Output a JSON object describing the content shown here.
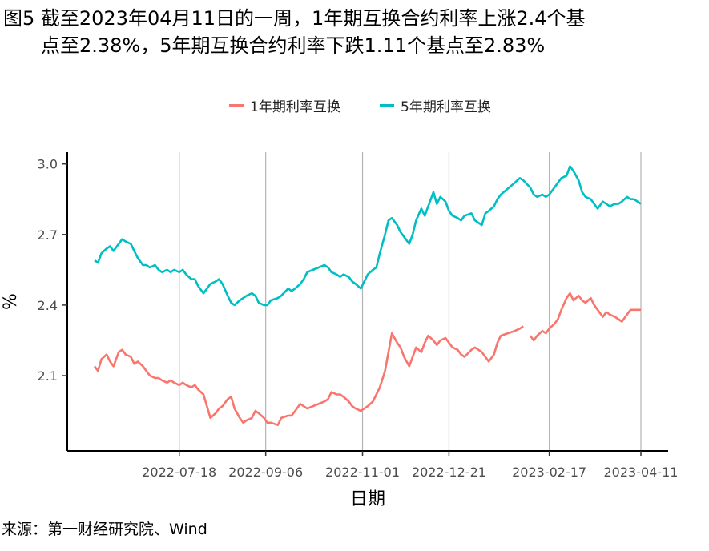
{
  "title": {
    "line1": "图5  截至2023年04月11日的一周，1年期互换合约利率上涨2.4个基",
    "line2": "点至2.38%，5年期互换合约利率下跌1.11个基点至2.83%"
  },
  "source": "来源：第一财经研究院、Wind",
  "chart_data": {
    "type": "line",
    "xlabel": "日期",
    "ylabel": "%",
    "x_range": [
      "2022-05-30",
      "2023-04-11"
    ],
    "ylim": [
      1.78,
      3.05
    ],
    "y_ticks": [
      2.1,
      2.4,
      2.7,
      3.0
    ],
    "y_tick_labels": [
      "2.1",
      "2.4",
      "2.7",
      "3.0"
    ],
    "x_ticks": [
      "2022-07-18",
      "2022-09-06",
      "2022-11-01",
      "2022-12-21",
      "2023-02-17",
      "2023-04-11"
    ],
    "grid": "vertical lines at x ticks",
    "legend_position": "top",
    "series": [
      {
        "name": "1年期利率互换",
        "color": "#F8766D",
        "points": [
          [
            "2022-05-30",
            2.14
          ],
          [
            "2022-06-01",
            2.12
          ],
          [
            "2022-06-03",
            2.17
          ],
          [
            "2022-06-06",
            2.19
          ],
          [
            "2022-06-08",
            2.16
          ],
          [
            "2022-06-10",
            2.14
          ],
          [
            "2022-06-13",
            2.2
          ],
          [
            "2022-06-15",
            2.21
          ],
          [
            "2022-06-17",
            2.19
          ],
          [
            "2022-06-20",
            2.18
          ],
          [
            "2022-06-22",
            2.15
          ],
          [
            "2022-06-24",
            2.16
          ],
          [
            "2022-06-27",
            2.14
          ],
          [
            "2022-06-29",
            2.12
          ],
          [
            "2022-07-01",
            2.1
          ],
          [
            "2022-07-04",
            2.09
          ],
          [
            "2022-07-06",
            2.09
          ],
          [
            "2022-07-08",
            2.08
          ],
          [
            "2022-07-11",
            2.07
          ],
          [
            "2022-07-13",
            2.08
          ],
          [
            "2022-07-15",
            2.07
          ],
          [
            "2022-07-18",
            2.06
          ],
          [
            "2022-07-20",
            2.07
          ],
          [
            "2022-07-22",
            2.06
          ],
          [
            "2022-07-25",
            2.05
          ],
          [
            "2022-07-27",
            2.06
          ],
          [
            "2022-07-29",
            2.04
          ],
          [
            "2022-08-01",
            2.02
          ],
          [
            "2022-08-03",
            1.97
          ],
          [
            "2022-08-05",
            1.92
          ],
          [
            "2022-08-08",
            1.94
          ],
          [
            "2022-08-10",
            1.96
          ],
          [
            "2022-08-12",
            1.97
          ],
          [
            "2022-08-15",
            2.0
          ],
          [
            "2022-08-17",
            2.01
          ],
          [
            "2022-08-19",
            1.96
          ],
          [
            "2022-08-22",
            1.92
          ],
          [
            "2022-08-24",
            1.9
          ],
          [
            "2022-08-26",
            1.91
          ],
          [
            "2022-08-29",
            1.92
          ],
          [
            "2022-08-31",
            1.95
          ],
          [
            "2022-09-02",
            1.94
          ],
          [
            "2022-09-05",
            1.92
          ],
          [
            "2022-09-07",
            1.9
          ],
          [
            "2022-09-09",
            1.9
          ],
          [
            "2022-09-13",
            1.89
          ],
          [
            "2022-09-15",
            1.92
          ],
          [
            "2022-09-19",
            1.93
          ],
          [
            "2022-09-21",
            1.93
          ],
          [
            "2022-09-23",
            1.95
          ],
          [
            "2022-09-26",
            1.98
          ],
          [
            "2022-09-28",
            1.97
          ],
          [
            "2022-09-30",
            1.96
          ],
          [
            "2022-10-10",
            1.99
          ],
          [
            "2022-10-12",
            2.0
          ],
          [
            "2022-10-14",
            2.03
          ],
          [
            "2022-10-17",
            2.02
          ],
          [
            "2022-10-19",
            2.02
          ],
          [
            "2022-10-21",
            2.01
          ],
          [
            "2022-10-24",
            1.99
          ],
          [
            "2022-10-26",
            1.97
          ],
          [
            "2022-10-28",
            1.96
          ],
          [
            "2022-10-31",
            1.95
          ],
          [
            "2022-11-02",
            1.96
          ],
          [
            "2022-11-04",
            1.97
          ],
          [
            "2022-11-07",
            1.99
          ],
          [
            "2022-11-09",
            2.02
          ],
          [
            "2022-11-11",
            2.05
          ],
          [
            "2022-11-14",
            2.12
          ],
          [
            "2022-11-16",
            2.2
          ],
          [
            "2022-11-18",
            2.28
          ],
          [
            "2022-11-21",
            2.24
          ],
          [
            "2022-11-23",
            2.22
          ],
          [
            "2022-11-25",
            2.18
          ],
          [
            "2022-11-28",
            2.14
          ],
          [
            "2022-11-30",
            2.18
          ],
          [
            "2022-12-02",
            2.22
          ],
          [
            "2022-12-05",
            2.2
          ],
          [
            "2022-12-07",
            2.24
          ],
          [
            "2022-12-09",
            2.27
          ],
          [
            "2022-12-12",
            2.25
          ],
          [
            "2022-12-14",
            2.23
          ],
          [
            "2022-12-16",
            2.25
          ],
          [
            "2022-12-19",
            2.26
          ],
          [
            "2022-12-21",
            2.24
          ],
          [
            "2022-12-23",
            2.22
          ],
          [
            "2022-12-26",
            2.21
          ],
          [
            "2022-12-28",
            2.19
          ],
          [
            "2022-12-30",
            2.18
          ],
          [
            "2023-01-03",
            2.21
          ],
          [
            "2023-01-05",
            2.22
          ],
          [
            "2023-01-09",
            2.2
          ],
          [
            "2023-01-11",
            2.18
          ],
          [
            "2023-01-13",
            2.16
          ],
          [
            "2023-01-16",
            2.19
          ],
          [
            "2023-01-18",
            2.24
          ],
          [
            "2023-01-20",
            2.27
          ],
          [
            "2023-01-28",
            2.29
          ],
          [
            "2023-01-31",
            2.3
          ],
          [
            "2023-02-02",
            2.31
          ],
          [
            "2023-02-06",
            2.27
          ],
          [
            "2023-02-08",
            2.25
          ],
          [
            "2023-02-10",
            2.27
          ],
          [
            "2023-02-13",
            2.29
          ],
          [
            "2023-02-15",
            2.28
          ],
          [
            "2023-02-17",
            2.3
          ],
          [
            "2023-02-20",
            2.32
          ],
          [
            "2023-02-22",
            2.34
          ],
          [
            "2023-02-24",
            2.38
          ],
          [
            "2023-02-27",
            2.43
          ],
          [
            "2023-03-01",
            2.45
          ],
          [
            "2023-03-03",
            2.42
          ],
          [
            "2023-03-06",
            2.44
          ],
          [
            "2023-03-08",
            2.42
          ],
          [
            "2023-03-10",
            2.41
          ],
          [
            "2023-03-13",
            2.43
          ],
          [
            "2023-03-15",
            2.4
          ],
          [
            "2023-03-17",
            2.38
          ],
          [
            "2023-03-20",
            2.35
          ],
          [
            "2023-03-22",
            2.37
          ],
          [
            "2023-03-24",
            2.36
          ],
          [
            "2023-03-27",
            2.35
          ],
          [
            "2023-03-29",
            2.34
          ],
          [
            "2023-03-31",
            2.33
          ],
          [
            "2023-04-03",
            2.36
          ],
          [
            "2023-04-05",
            2.38
          ],
          [
            "2023-04-07",
            2.38
          ],
          [
            "2023-04-11",
            2.38
          ]
        ]
      },
      {
        "name": "5年期利率互换",
        "color": "#00BFC4",
        "points": [
          [
            "2022-05-30",
            2.59
          ],
          [
            "2022-06-01",
            2.58
          ],
          [
            "2022-06-03",
            2.62
          ],
          [
            "2022-06-06",
            2.64
          ],
          [
            "2022-06-08",
            2.65
          ],
          [
            "2022-06-10",
            2.63
          ],
          [
            "2022-06-13",
            2.66
          ],
          [
            "2022-06-15",
            2.68
          ],
          [
            "2022-06-17",
            2.67
          ],
          [
            "2022-06-20",
            2.66
          ],
          [
            "2022-06-22",
            2.63
          ],
          [
            "2022-06-24",
            2.6
          ],
          [
            "2022-06-27",
            2.57
          ],
          [
            "2022-06-29",
            2.57
          ],
          [
            "2022-07-01",
            2.56
          ],
          [
            "2022-07-04",
            2.57
          ],
          [
            "2022-07-06",
            2.55
          ],
          [
            "2022-07-08",
            2.54
          ],
          [
            "2022-07-11",
            2.55
          ],
          [
            "2022-07-13",
            2.54
          ],
          [
            "2022-07-15",
            2.55
          ],
          [
            "2022-07-18",
            2.54
          ],
          [
            "2022-07-20",
            2.55
          ],
          [
            "2022-07-22",
            2.53
          ],
          [
            "2022-07-25",
            2.51
          ],
          [
            "2022-07-27",
            2.51
          ],
          [
            "2022-07-29",
            2.48
          ],
          [
            "2022-08-01",
            2.45
          ],
          [
            "2022-08-03",
            2.47
          ],
          [
            "2022-08-05",
            2.49
          ],
          [
            "2022-08-08",
            2.5
          ],
          [
            "2022-08-10",
            2.51
          ],
          [
            "2022-08-12",
            2.49
          ],
          [
            "2022-08-15",
            2.44
          ],
          [
            "2022-08-17",
            2.41
          ],
          [
            "2022-08-19",
            2.4
          ],
          [
            "2022-08-22",
            2.42
          ],
          [
            "2022-08-24",
            2.43
          ],
          [
            "2022-08-26",
            2.44
          ],
          [
            "2022-08-29",
            2.45
          ],
          [
            "2022-08-31",
            2.44
          ],
          [
            "2022-09-02",
            2.41
          ],
          [
            "2022-09-05",
            2.4
          ],
          [
            "2022-09-07",
            2.4
          ],
          [
            "2022-09-09",
            2.42
          ],
          [
            "2022-09-13",
            2.43
          ],
          [
            "2022-09-15",
            2.44
          ],
          [
            "2022-09-19",
            2.47
          ],
          [
            "2022-09-21",
            2.46
          ],
          [
            "2022-09-23",
            2.47
          ],
          [
            "2022-09-26",
            2.49
          ],
          [
            "2022-09-28",
            2.51
          ],
          [
            "2022-09-30",
            2.54
          ],
          [
            "2022-10-10",
            2.57
          ],
          [
            "2022-10-12",
            2.56
          ],
          [
            "2022-10-14",
            2.54
          ],
          [
            "2022-10-17",
            2.53
          ],
          [
            "2022-10-19",
            2.52
          ],
          [
            "2022-10-21",
            2.53
          ],
          [
            "2022-10-24",
            2.52
          ],
          [
            "2022-10-26",
            2.5
          ],
          [
            "2022-10-28",
            2.49
          ],
          [
            "2022-10-31",
            2.47
          ],
          [
            "2022-11-02",
            2.5
          ],
          [
            "2022-11-04",
            2.53
          ],
          [
            "2022-11-07",
            2.55
          ],
          [
            "2022-11-09",
            2.56
          ],
          [
            "2022-11-11",
            2.62
          ],
          [
            "2022-11-14",
            2.7
          ],
          [
            "2022-11-16",
            2.76
          ],
          [
            "2022-11-18",
            2.77
          ],
          [
            "2022-11-21",
            2.74
          ],
          [
            "2022-11-23",
            2.71
          ],
          [
            "2022-11-25",
            2.69
          ],
          [
            "2022-11-28",
            2.66
          ],
          [
            "2022-11-30",
            2.7
          ],
          [
            "2022-12-02",
            2.76
          ],
          [
            "2022-12-05",
            2.81
          ],
          [
            "2022-12-07",
            2.78
          ],
          [
            "2022-12-09",
            2.82
          ],
          [
            "2022-12-12",
            2.88
          ],
          [
            "2022-12-14",
            2.83
          ],
          [
            "2022-12-16",
            2.86
          ],
          [
            "2022-12-19",
            2.84
          ],
          [
            "2022-12-21",
            2.8
          ],
          [
            "2022-12-23",
            2.78
          ],
          [
            "2022-12-26",
            2.77
          ],
          [
            "2022-12-28",
            2.76
          ],
          [
            "2022-12-30",
            2.78
          ],
          [
            "2023-01-03",
            2.79
          ],
          [
            "2023-01-05",
            2.76
          ],
          [
            "2023-01-09",
            2.74
          ],
          [
            "2023-01-11",
            2.79
          ],
          [
            "2023-01-13",
            2.8
          ],
          [
            "2023-01-16",
            2.82
          ],
          [
            "2023-01-18",
            2.85
          ],
          [
            "2023-01-20",
            2.87
          ],
          [
            "2023-01-28",
            2.92
          ],
          [
            "2023-01-31",
            2.94
          ],
          [
            "2023-02-02",
            2.93
          ],
          [
            "2023-02-06",
            2.9
          ],
          [
            "2023-02-08",
            2.87
          ],
          [
            "2023-02-10",
            2.86
          ],
          [
            "2023-02-13",
            2.87
          ],
          [
            "2023-02-15",
            2.86
          ],
          [
            "2023-02-17",
            2.87
          ],
          [
            "2023-02-20",
            2.9
          ],
          [
            "2023-02-22",
            2.92
          ],
          [
            "2023-02-24",
            2.94
          ],
          [
            "2023-02-27",
            2.95
          ],
          [
            "2023-03-01",
            2.99
          ],
          [
            "2023-03-03",
            2.97
          ],
          [
            "2023-03-06",
            2.93
          ],
          [
            "2023-03-08",
            2.88
          ],
          [
            "2023-03-10",
            2.86
          ],
          [
            "2023-03-13",
            2.85
          ],
          [
            "2023-03-15",
            2.83
          ],
          [
            "2023-03-17",
            2.81
          ],
          [
            "2023-03-20",
            2.84
          ],
          [
            "2023-03-22",
            2.83
          ],
          [
            "2023-03-24",
            2.82
          ],
          [
            "2023-03-27",
            2.83
          ],
          [
            "2023-03-29",
            2.83
          ],
          [
            "2023-03-31",
            2.84
          ],
          [
            "2023-04-03",
            2.86
          ],
          [
            "2023-04-05",
            2.85
          ],
          [
            "2023-04-07",
            2.85
          ],
          [
            "2023-04-11",
            2.83
          ]
        ]
      }
    ]
  }
}
